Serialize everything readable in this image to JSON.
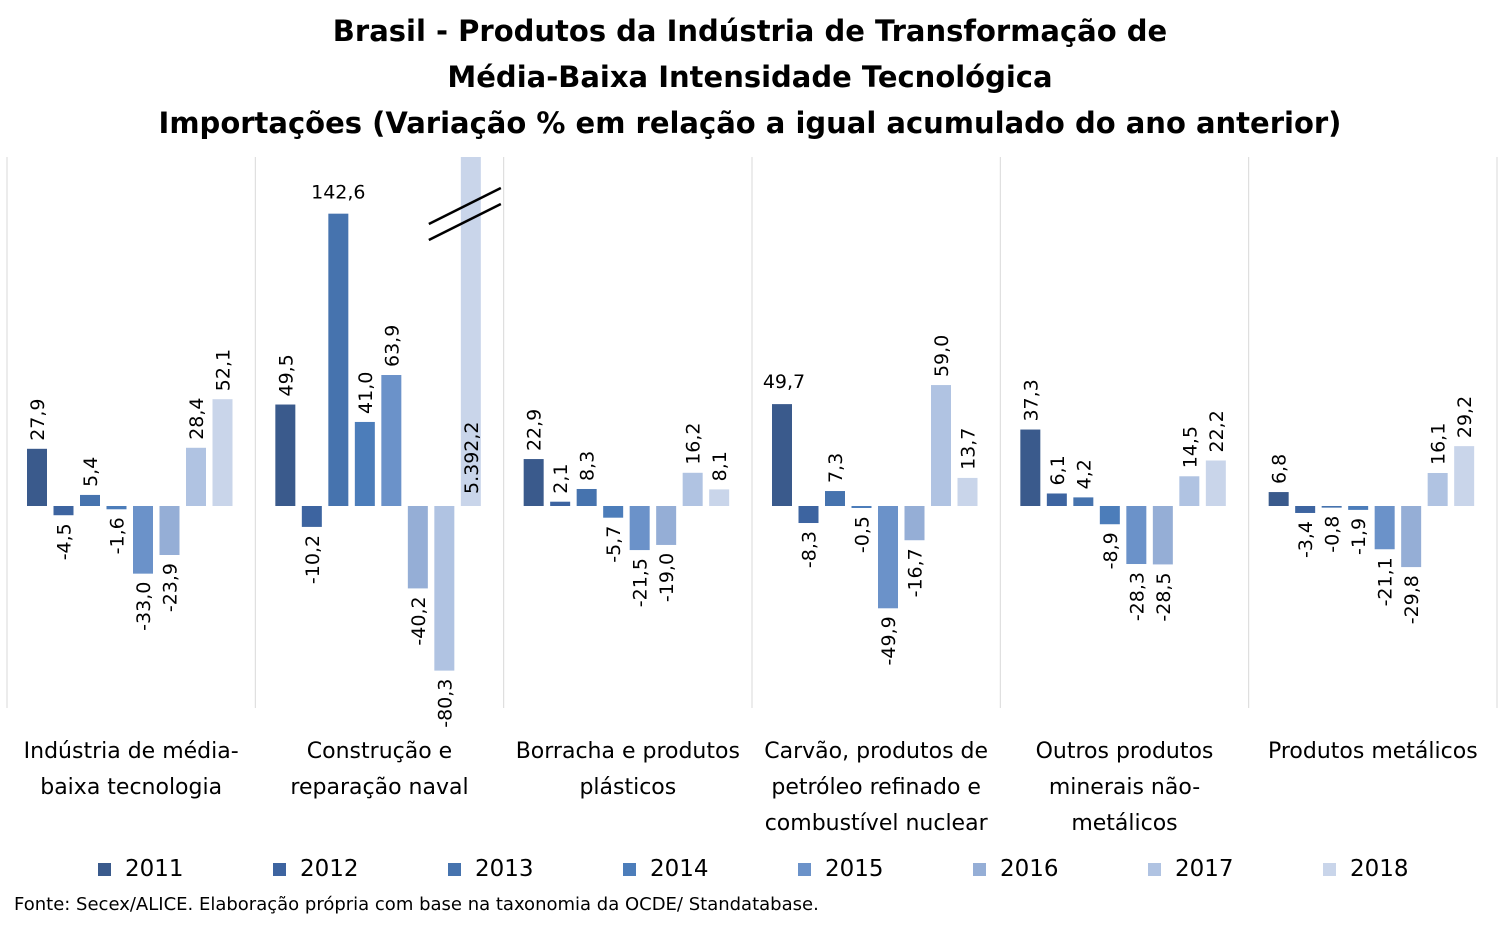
{
  "chart_data": {
    "type": "bar",
    "title_lines": [
      "Brasil - Produtos da Indústria de Transformação de",
      "Média-Baixa Intensidade Tecnológica",
      "Importações (Variação % em relação a igual acumulado do ano anterior)"
    ],
    "categories": [
      [
        "Indústria de média-",
        "baixa tecnologia"
      ],
      [
        "Construção e",
        "reparação naval"
      ],
      [
        "Borracha e produtos",
        "plásticos"
      ],
      [
        "Carvão, produtos de",
        "petróleo refinado e",
        "combustível nuclear"
      ],
      [
        "Outros produtos",
        "minerais não-",
        "metálicos"
      ],
      [
        "Produtos metálicos"
      ]
    ],
    "series": [
      {
        "name": "2011",
        "color": "#3a5a8c",
        "values": [
          27.9,
          49.5,
          22.9,
          49.7,
          37.3,
          6.8
        ],
        "labels": [
          "27,9",
          "49,5",
          "22,9",
          "49,7",
          "37,3",
          "6,8"
        ]
      },
      {
        "name": "2012",
        "color": "#3d64a0",
        "values": [
          -4.5,
          -10.2,
          2.1,
          -8.3,
          6.1,
          -3.4
        ],
        "labels": [
          "-4,5",
          "-10,2",
          "2,1",
          "-8,3",
          "6,1",
          "-3,4"
        ]
      },
      {
        "name": "2013",
        "color": "#4673ae",
        "values": [
          5.4,
          142.6,
          8.3,
          7.3,
          4.2,
          -0.8
        ],
        "labels": [
          "5,4",
          "142,6",
          "8,3",
          "7,3",
          "4,2",
          "-0,8"
        ]
      },
      {
        "name": "2014",
        "color": "#4c7dba",
        "values": [
          -1.6,
          41.0,
          -5.7,
          -0.5,
          -8.9,
          -1.9
        ],
        "labels": [
          "-1,6",
          "41,0",
          "-5,7",
          "-0,5",
          "-8,9",
          "-1,9"
        ]
      },
      {
        "name": "2015",
        "color": "#6b92c9",
        "values": [
          -33.0,
          63.9,
          -21.5,
          -49.9,
          -28.3,
          -21.1
        ],
        "labels": [
          "-33,0",
          "63,9",
          "-21,5",
          "-49,9",
          "-28,3",
          "-21,1"
        ]
      },
      {
        "name": "2016",
        "color": "#95aed6",
        "values": [
          -23.9,
          -40.2,
          -19.0,
          -16.7,
          -28.5,
          -29.8
        ],
        "labels": [
          "-23,9",
          "-40,2",
          "-19,0",
          "-16,7",
          "-28,5",
          "-29,8"
        ]
      },
      {
        "name": "2017",
        "color": "#b0c3e2",
        "values": [
          28.4,
          -80.3,
          16.2,
          59.0,
          14.5,
          16.1
        ],
        "labels": [
          "28,4",
          "-80,3",
          "16,2",
          "59,0",
          "14,5",
          "16,1"
        ]
      },
      {
        "name": "2018",
        "color": "#c9d5ea",
        "values": [
          52.1,
          5392.2,
          8.1,
          13.7,
          22.2,
          29.2
        ],
        "labels": [
          "52,1",
          "5.392,2",
          "8,1",
          "13,7",
          "22,2",
          "29,2"
        ]
      }
    ],
    "axis_break": {
      "category_index": 1,
      "series_index": 7
    },
    "ylim": [
      -100,
      170
    ],
    "grid": false,
    "category_separators": true,
    "legend_placement": "bottom"
  },
  "source": "Fonte: Secex/ALICE. Elaboração própria com base na taxonomia da OCDE/ Standatabase."
}
